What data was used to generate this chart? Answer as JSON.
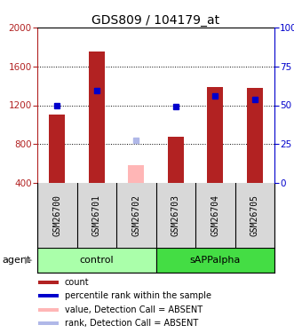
{
  "title": "GDS809 / 104179_at",
  "samples": [
    "GSM26700",
    "GSM26701",
    "GSM26702",
    "GSM26703",
    "GSM26704",
    "GSM26705"
  ],
  "bar_values": [
    1100,
    1750,
    null,
    880,
    1390,
    1380
  ],
  "bar_absent_values": [
    null,
    null,
    580,
    null,
    null,
    null
  ],
  "dot_values": [
    1200,
    1350,
    null,
    1190,
    1300,
    1260
  ],
  "dot_absent_values": [
    null,
    null,
    840,
    null,
    null,
    null
  ],
  "bar_color": "#b22222",
  "bar_absent_color": "#ffb6b6",
  "dot_color": "#0000cc",
  "dot_absent_color": "#b0b8e8",
  "ylim_left": [
    400,
    2000
  ],
  "ylim_right": [
    0,
    100
  ],
  "yticks_left": [
    400,
    800,
    1200,
    1600,
    2000
  ],
  "yticks_right": [
    0,
    25,
    50,
    75,
    100
  ],
  "control_color": "#aaffaa",
  "sAPPalpha_color": "#44dd44",
  "sample_bg_color": "#d8d8d8",
  "legend_items": [
    [
      "#b22222",
      "count"
    ],
    [
      "#0000cc",
      "percentile rank within the sample"
    ],
    [
      "#ffb6b6",
      "value, Detection Call = ABSENT"
    ],
    [
      "#b0b8e8",
      "rank, Detection Call = ABSENT"
    ]
  ]
}
